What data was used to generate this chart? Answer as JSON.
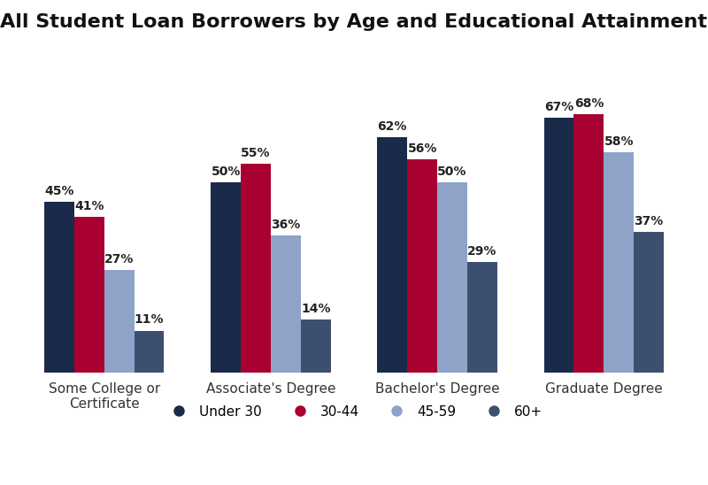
{
  "title": "All Student Loan Borrowers by Age and Educational Attainment",
  "categories": [
    "Some College or\nCertificate",
    "Associate's Degree",
    "Bachelor's Degree",
    "Graduate Degree"
  ],
  "series": {
    "Under 30": [
      45,
      50,
      62,
      67
    ],
    "30-44": [
      41,
      55,
      56,
      68
    ],
    "45-59": [
      27,
      36,
      50,
      58
    ],
    "60+": [
      11,
      14,
      29,
      37
    ]
  },
  "colors": {
    "Under 30": "#1a2a4a",
    "30-44": "#a80030",
    "45-59": "#8fa3c8",
    "60+": "#3d4f6e"
  },
  "legend_labels": [
    "Under 30",
    "30-44",
    "45-59",
    "60+"
  ],
  "bar_width": 0.18,
  "ylim": [
    0,
    85
  ],
  "background_color": "#ffffff",
  "title_fontsize": 16,
  "label_fontsize": 10,
  "legend_fontsize": 11,
  "tick_fontsize": 11
}
